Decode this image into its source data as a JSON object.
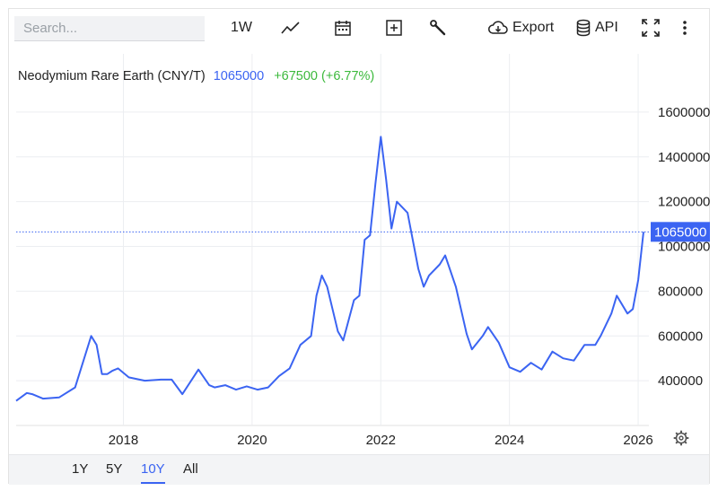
{
  "toolbar": {
    "search_placeholder": "Search...",
    "interval_label": "1W",
    "export_label": "Export",
    "api_label": "API",
    "icons": [
      "line-chart-icon",
      "calendar-icon",
      "plus-box-icon",
      "wrench-icon",
      "cloud-download-icon",
      "database-icon",
      "fullscreen-icon",
      "more-vertical-icon"
    ]
  },
  "legend": {
    "name": "Neodymium Rare Earth (CNY/T)",
    "price": "1065000",
    "change": "+67500 (+6.77%)",
    "price_color": "#3b64f2",
    "change_color": "#3cb93c"
  },
  "last_price_tag": "1065000",
  "range_buttons": [
    "1Y",
    "5Y",
    "10Y",
    "All"
  ],
  "range_selected": "10Y",
  "colors": {
    "line": "#3b64f2",
    "grid": "#eceef1",
    "axis": "#e0e0e0"
  },
  "chart_data": {
    "type": "line",
    "series": [
      {
        "x": [
          "2016-05",
          "2016-07",
          "2016-08",
          "2016-10",
          "2017-01",
          "2017-04",
          "2017-07",
          "2017-08",
          "2017-09",
          "2017-10",
          "2017-11",
          "2017-12",
          "2018-02",
          "2018-03",
          "2018-05",
          "2018-08",
          "2018-10",
          "2018-12",
          "2019-03",
          "2019-05",
          "2019-06",
          "2019-08",
          "2019-10",
          "2019-12",
          "2020-02",
          "2020-04",
          "2020-06",
          "2020-08",
          "2020-10",
          "2020-12",
          "2021-01",
          "2021-02",
          "2021-03",
          "2021-05",
          "2021-06",
          "2021-08",
          "2021-09",
          "2021-10",
          "2021-11",
          "2021-12",
          "2022-01",
          "2022-02",
          "2022-03",
          "2022-04",
          "2022-06",
          "2022-08",
          "2022-09",
          "2022-10",
          "2022-12",
          "2023-01",
          "2023-03",
          "2023-05",
          "2023-06",
          "2023-08",
          "2023-09",
          "2023-11",
          "2024-01",
          "2024-03",
          "2024-05",
          "2024-07",
          "2024-09",
          "2024-11",
          "2025-01",
          "2025-03",
          "2025-05",
          "2025-06",
          "2025-08",
          "2025-09",
          "2025-11",
          "2025-12",
          "2026-01",
          "2026-02"
        ],
        "y": [
          310000,
          345000,
          340000,
          320000,
          325000,
          370000,
          600000,
          560000,
          430000,
          430000,
          445000,
          455000,
          415000,
          410000,
          400000,
          405000,
          405000,
          340000,
          450000,
          380000,
          370000,
          380000,
          360000,
          375000,
          360000,
          370000,
          420000,
          455000,
          560000,
          600000,
          780000,
          870000,
          820000,
          620000,
          580000,
          760000,
          780000,
          1030000,
          1050000,
          1280000,
          1490000,
          1300000,
          1080000,
          1200000,
          1150000,
          900000,
          820000,
          870000,
          920000,
          960000,
          820000,
          610000,
          540000,
          600000,
          640000,
          570000,
          460000,
          440000,
          480000,
          450000,
          530000,
          500000,
          490000,
          560000,
          560000,
          600000,
          700000,
          780000,
          700000,
          720000,
          850000,
          1065000
        ]
      }
    ],
    "title": "Neodymium Rare Earth (CNY/T)",
    "xlabel": "",
    "ylabel": "",
    "x_ticks": [
      "2018",
      "2020",
      "2022",
      "2024",
      "2026"
    ],
    "y_ticks": [
      "400000",
      "600000",
      "800000",
      "1000000",
      "1200000",
      "1400000",
      "1600000"
    ],
    "ylim": [
      200000,
      1700000
    ],
    "xlim": [
      "2016-05",
      "2026-03"
    ],
    "grid": true,
    "y_axis_position": "right"
  }
}
